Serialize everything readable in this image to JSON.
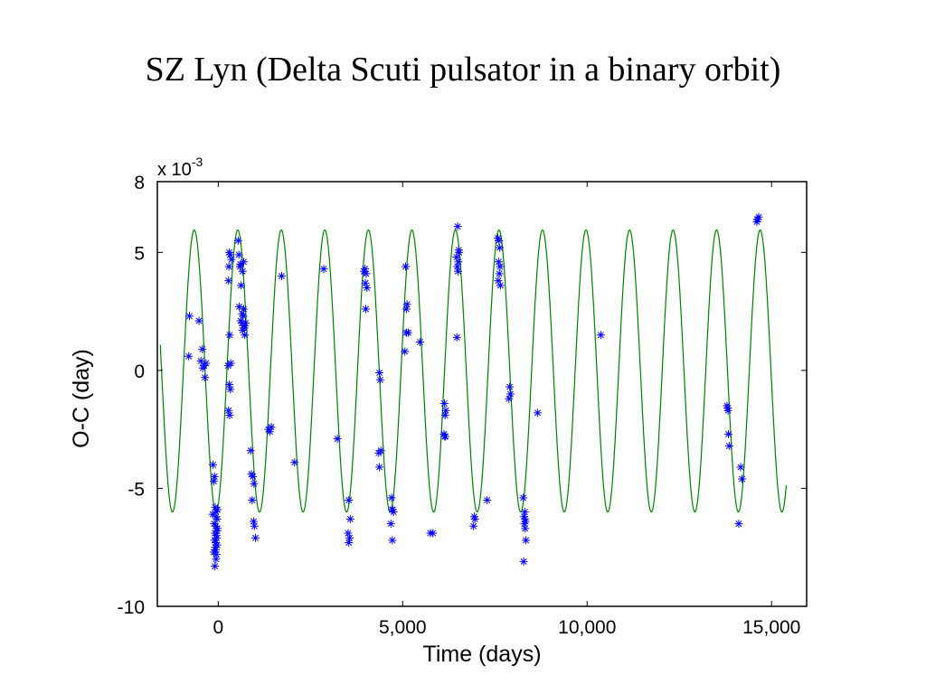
{
  "slide": {
    "title": "SZ Lyn (Delta Scuti pulsator in a binary orbit)"
  },
  "chart_data": {
    "type": "scatter",
    "title": "",
    "xlabel": "Time (days)",
    "ylabel": "O-C (day)",
    "y_multiplier": "x 10",
    "y_multiplier_exponent": "-3",
    "xlim": [
      -1650,
      15950
    ],
    "ylim": [
      -10,
      8
    ],
    "x_ticks": [
      0,
      5000,
      10000,
      15000
    ],
    "x_tick_labels": [
      "0",
      "5,000",
      "10,000",
      "15,000"
    ],
    "y_ticks": [
      -10,
      -5,
      0,
      5,
      8
    ],
    "y_tick_labels": [
      "-10",
      "-5",
      "0",
      "5",
      "8"
    ],
    "grid": false,
    "legend": "none",
    "colors": {
      "observed": "#0000ff",
      "model": "#008000",
      "axes": "#000000"
    },
    "model_curve": {
      "kind": "light-time orbit fit",
      "period_days": 1180,
      "peak_value": 5.95,
      "trough_value": -6.0,
      "first_peak_x": -650,
      "x_range": [
        -1570,
        15400
      ]
    },
    "series": [
      {
        "marker": "asterisk",
        "x": [
          -780,
          -800,
          -520,
          -430,
          -470,
          -380,
          -420,
          -330,
          -360,
          -140,
          -100,
          -120,
          -80,
          -60,
          -150,
          -30,
          -110,
          -70,
          -20,
          -90,
          -50,
          -40,
          -100,
          -70,
          -30,
          -80,
          -120,
          -50,
          -60,
          -90,
          -20,
          -60,
          -30,
          -70,
          280,
          310,
          340,
          270,
          300,
          330,
          280,
          310,
          360,
          320,
          300,
          290,
          540,
          560,
          600,
          590,
          620,
          570,
          650,
          610,
          680,
          640,
          700,
          660,
          720,
          690,
          740,
          710,
          660,
          690,
          880,
          900,
          940,
          920,
          960,
          980,
          1010,
          970,
          1360,
          1400,
          1440,
          1720,
          2070,
          2860,
          3230,
          3540,
          3580,
          3520,
          3560,
          3540,
          3980,
          4010,
          3990,
          4030,
          3950,
          4000,
          4370,
          4390,
          4410,
          4350,
          4370,
          4700,
          4730,
          4680,
          4750,
          4720,
          4710,
          5080,
          5120,
          5100,
          5150,
          5100,
          5060,
          5470,
          5750,
          5820,
          6130,
          6170,
          6150,
          6120,
          6160,
          6140,
          6490,
          6530,
          6460,
          6510,
          6480,
          6500,
          6520,
          6470,
          6940,
          6960,
          6920,
          7290,
          7580,
          7610,
          7630,
          7600,
          7640,
          7620,
          7590,
          7650,
          7900,
          7920,
          7880,
          8270,
          8310,
          8290,
          8330,
          8300,
          8320,
          8340,
          8280,
          8310,
          8660,
          10370,
          13790,
          13810,
          13830,
          13850,
          13820,
          14110,
          14160,
          14200,
          14610,
          14650,
          14630,
          14600
        ],
        "y": [
          2.3,
          0.6,
          2.1,
          0.9,
          0.4,
          0.2,
          0.1,
          0.3,
          -0.3,
          -4.0,
          -4.5,
          -4.7,
          -5.8,
          -6.0,
          -6.1,
          -6.3,
          -6.5,
          -6.6,
          -6.7,
          -6.9,
          -7.0,
          -7.1,
          -7.2,
          -7.3,
          -7.4,
          -7.5,
          -7.7,
          -7.8,
          -8.0,
          -8.3,
          -5.9,
          -6.2,
          -6.8,
          -7.6,
          3.8,
          1.5,
          0.3,
          0.2,
          -0.6,
          -0.8,
          -1.7,
          -1.9,
          4.7,
          4.9,
          5.0,
          4.4,
          5.5,
          4.9,
          4.5,
          4.4,
          3.6,
          2.7,
          2.4,
          2.1,
          2.3,
          2.0,
          1.9,
          1.7,
          1.5,
          2.6,
          2.0,
          1.8,
          4.2,
          4.6,
          -3.4,
          -4.4,
          -4.5,
          -5.5,
          -6.4,
          -6.6,
          -7.1,
          -4.8,
          -2.5,
          -2.6,
          -2.4,
          4.0,
          -3.9,
          4.3,
          -2.9,
          -5.5,
          -6.3,
          -6.9,
          -7.1,
          -7.3,
          4.3,
          4.1,
          3.7,
          3.5,
          4.2,
          2.6,
          -0.1,
          -0.4,
          -3.4,
          -3.5,
          -4.1,
          -5.4,
          -5.9,
          -6.5,
          -6.0,
          -7.2,
          -5.9,
          4.4,
          2.8,
          2.6,
          1.6,
          1.6,
          0.8,
          1.2,
          -6.9,
          -6.9,
          -1.4,
          -1.7,
          -1.9,
          -2.7,
          -2.8,
          -2.8,
          6.1,
          5.0,
          4.8,
          4.6,
          4.4,
          4.2,
          5.1,
          1.4,
          -6.2,
          -6.3,
          -6.6,
          -5.5,
          5.6,
          5.5,
          5.2,
          4.6,
          4.4,
          4.1,
          3.8,
          3.6,
          -0.7,
          -1.0,
          -1.2,
          -5.4,
          -6.0,
          -6.2,
          -6.4,
          -6.5,
          -6.7,
          -7.2,
          -8.1,
          -6.3,
          -1.8,
          1.5,
          -1.5,
          -1.6,
          -2.7,
          -3.2,
          -1.7,
          -6.5,
          -4.1,
          -4.6,
          6.4,
          6.5,
          6.4,
          6.3
        ]
      }
    ]
  }
}
